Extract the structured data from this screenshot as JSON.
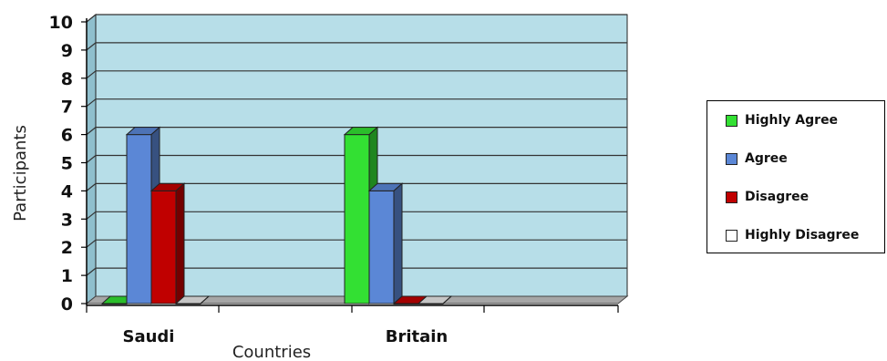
{
  "chart_data": {
    "type": "bar",
    "categories": [
      "Saudi",
      "Britain"
    ],
    "series": [
      {
        "name": "Highly Agree",
        "values": [
          0,
          6
        ],
        "color": "#33e033"
      },
      {
        "name": "Agree",
        "values": [
          6,
          4
        ],
        "color": "#5b87d6"
      },
      {
        "name": "Disagree",
        "values": [
          4,
          0
        ],
        "color": "#c00000"
      },
      {
        "name": "Highly Disagree",
        "values": [
          0,
          0
        ],
        "color": "#ffffff"
      }
    ],
    "xlabel": "Countries",
    "ylabel": "Participants",
    "ylim": [
      0,
      10
    ],
    "yticks": [
      "0",
      "1",
      "2",
      "3",
      "4",
      "5",
      "6",
      "7",
      "8",
      "9",
      "10"
    ],
    "grid": true,
    "legend_position": "right",
    "plot_background": "#b7dee8"
  }
}
